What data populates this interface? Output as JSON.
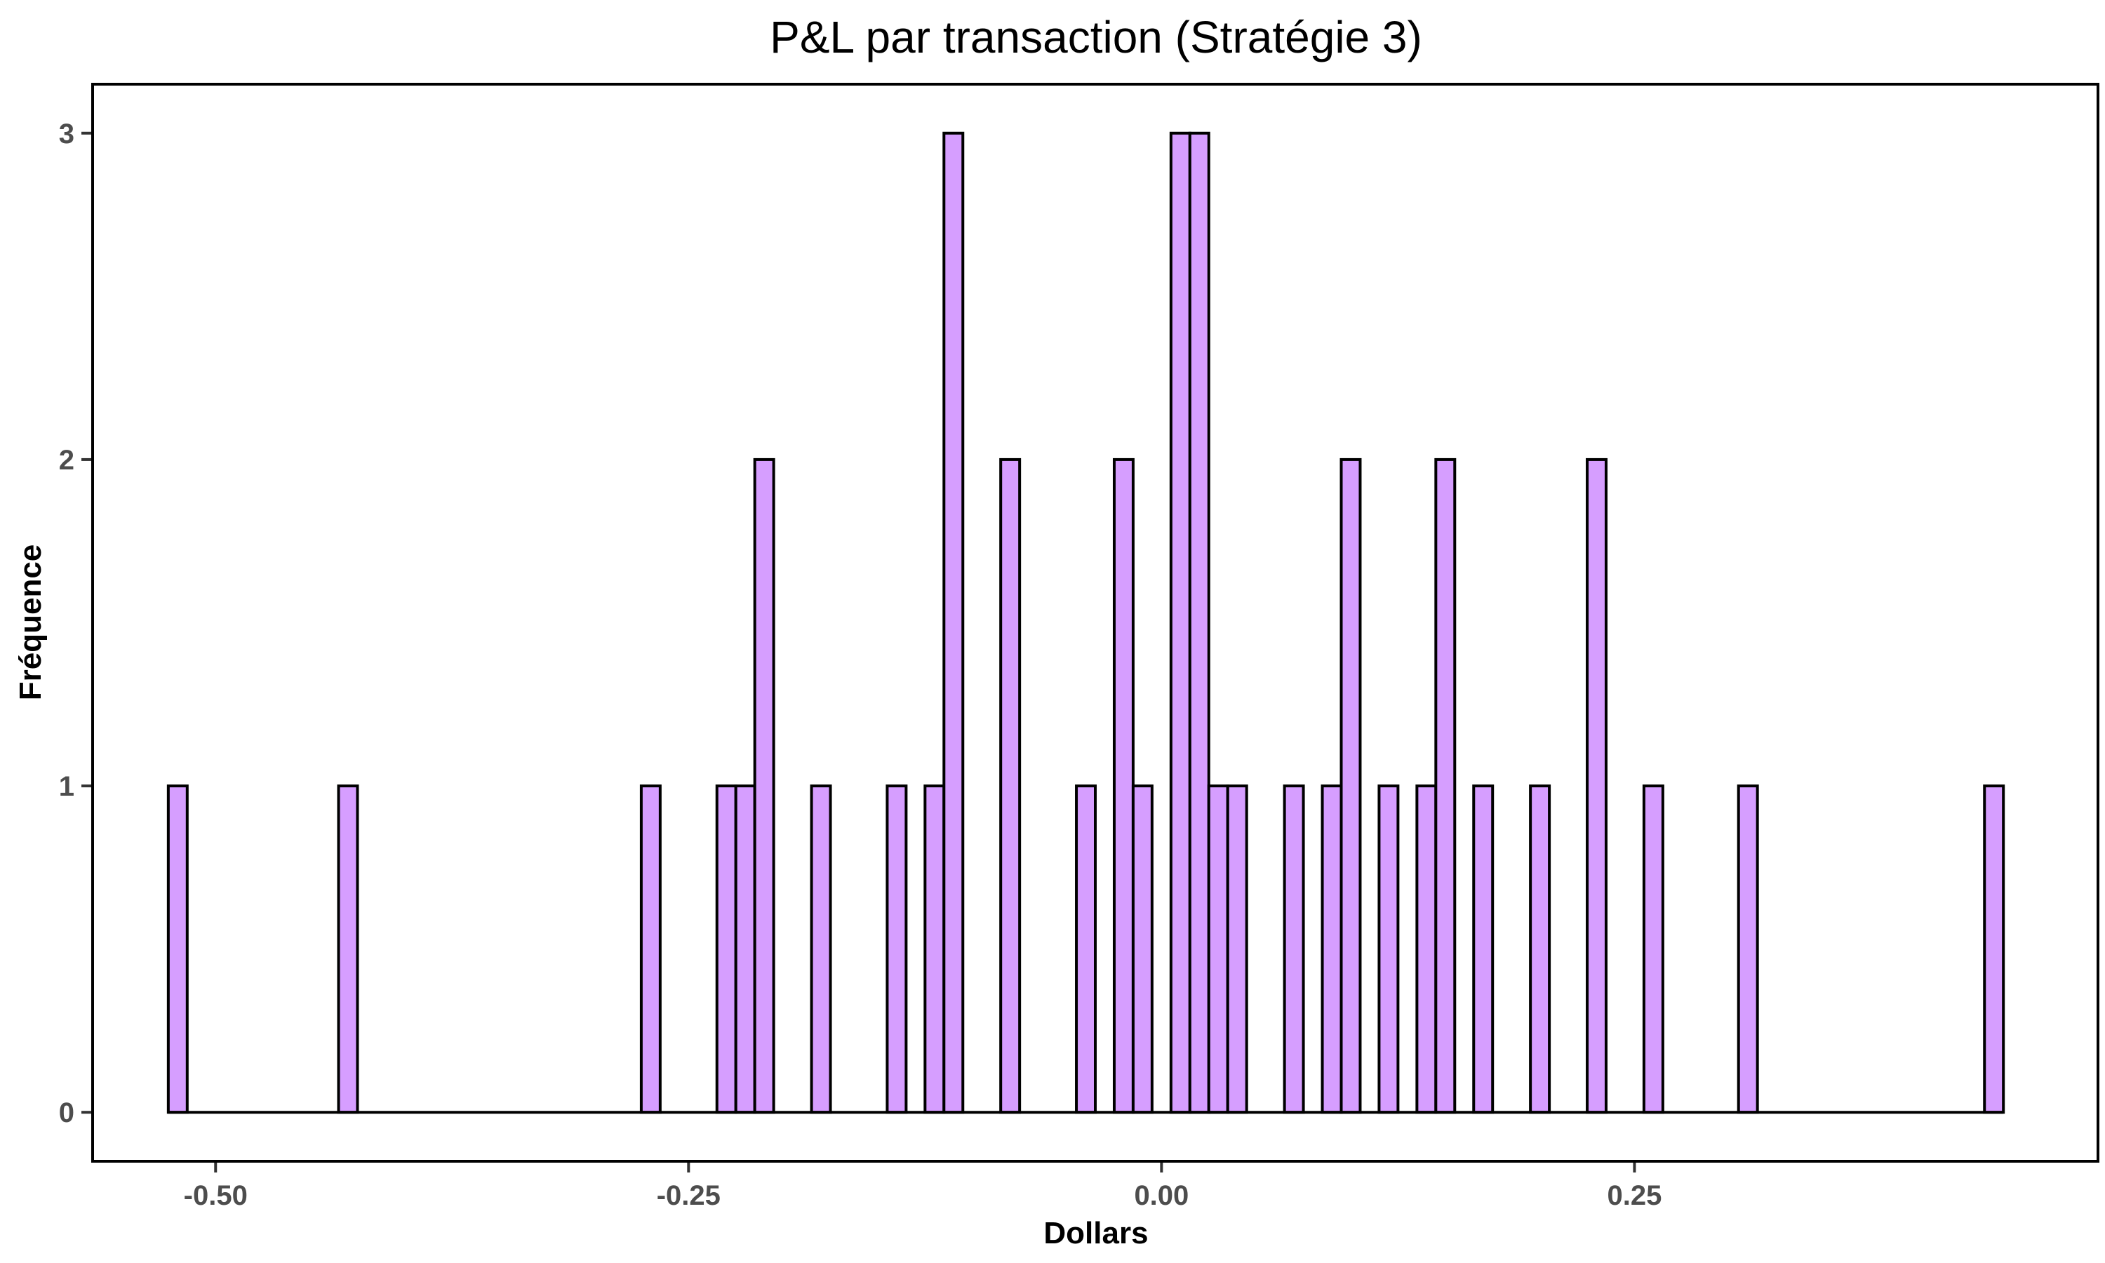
{
  "chart_data": {
    "type": "histogram",
    "title": "P&L par transaction (Stratégie 3)",
    "xlabel": "Dollars",
    "ylabel": "Fréquence",
    "bin_width": 0.01,
    "xlim": [
      -0.565,
      0.495
    ],
    "ylim": [
      -0.15,
      3.15
    ],
    "x_ticks": [
      -0.5,
      -0.25,
      0.0,
      0.25
    ],
    "x_tick_labels": [
      "-0.50",
      "-0.25",
      "0.00",
      "0.25"
    ],
    "y_ticks": [
      0,
      1,
      2,
      3
    ],
    "y_tick_labels": [
      "0",
      "1",
      "2",
      "3"
    ],
    "bar_color": "#D69EFF",
    "bar_edge_color": "#000000",
    "grid": false,
    "bins": [
      {
        "x": -0.52,
        "count": 1
      },
      {
        "x": -0.43,
        "count": 1
      },
      {
        "x": -0.27,
        "count": 1
      },
      {
        "x": -0.23,
        "count": 1
      },
      {
        "x": -0.22,
        "count": 1
      },
      {
        "x": -0.21,
        "count": 2
      },
      {
        "x": -0.18,
        "count": 1
      },
      {
        "x": -0.14,
        "count": 1
      },
      {
        "x": -0.12,
        "count": 1
      },
      {
        "x": -0.11,
        "count": 3
      },
      {
        "x": -0.08,
        "count": 2
      },
      {
        "x": -0.04,
        "count": 1
      },
      {
        "x": -0.02,
        "count": 2
      },
      {
        "x": -0.01,
        "count": 1
      },
      {
        "x": 0.01,
        "count": 3
      },
      {
        "x": 0.02,
        "count": 3
      },
      {
        "x": 0.03,
        "count": 1
      },
      {
        "x": 0.04,
        "count": 1
      },
      {
        "x": 0.07,
        "count": 1
      },
      {
        "x": 0.09,
        "count": 1
      },
      {
        "x": 0.1,
        "count": 2
      },
      {
        "x": 0.12,
        "count": 1
      },
      {
        "x": 0.14,
        "count": 1
      },
      {
        "x": 0.15,
        "count": 2
      },
      {
        "x": 0.17,
        "count": 1
      },
      {
        "x": 0.2,
        "count": 1
      },
      {
        "x": 0.23,
        "count": 2
      },
      {
        "x": 0.26,
        "count": 1
      },
      {
        "x": 0.31,
        "count": 1
      },
      {
        "x": 0.44,
        "count": 1
      }
    ],
    "range": [
      -0.525,
      0.445
    ]
  }
}
